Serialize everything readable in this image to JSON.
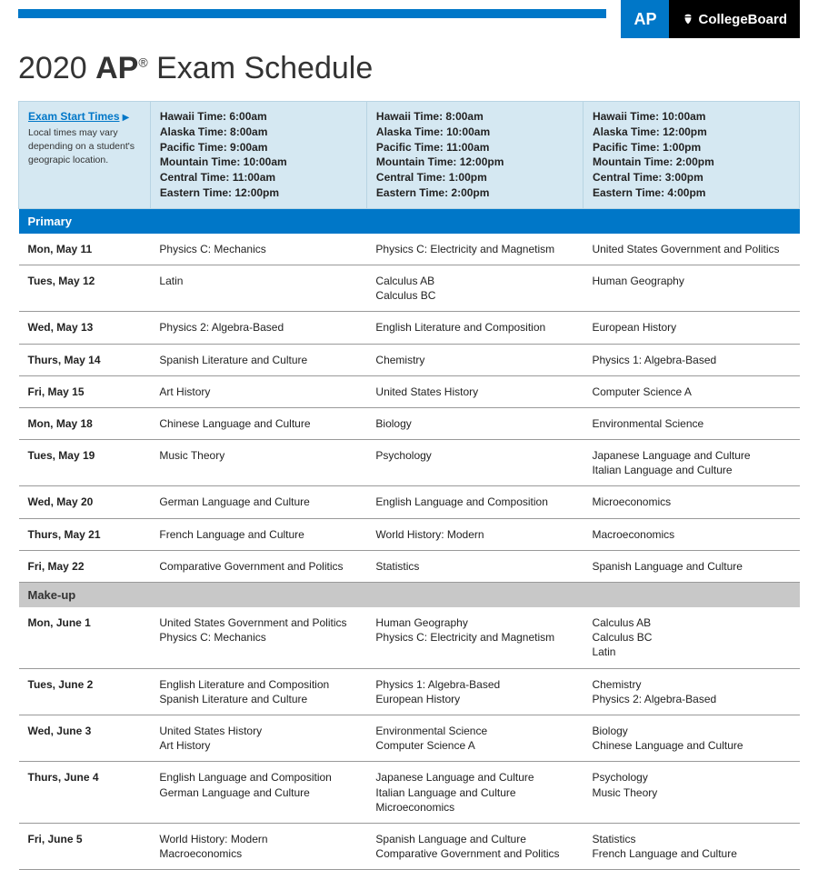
{
  "logo": {
    "ap": "AP",
    "cb": "CollegeBoard"
  },
  "title_pre": "2020 ",
  "title_bold": "AP",
  "title_reg": "®",
  "title_post": " Exam Schedule",
  "colors": {
    "accent": "#0077c8",
    "header_bg": "#d5e8f2",
    "section_gray": "#c8c8c8",
    "row_border": "#999999",
    "text": "#222222"
  },
  "times_header": {
    "label": "Exam Start Times",
    "note": "Local times may vary depending on a student's geograpic location."
  },
  "time_slots": [
    [
      "Hawaii Time: 6:00am",
      "Alaska Time: 8:00am",
      "Pacific Time: 9:00am",
      "Mountain Time: 10:00am",
      "Central Time: 11:00am",
      "Eastern Time: 12:00pm"
    ],
    [
      "Hawaii Time: 8:00am",
      "Alaska Time: 10:00am",
      "Pacific Time: 11:00am",
      "Mountain Time: 12:00pm",
      "Central Time: 1:00pm",
      "Eastern Time: 2:00pm"
    ],
    [
      "Hawaii Time: 10:00am",
      "Alaska Time: 12:00pm",
      "Pacific Time: 1:00pm",
      "Mountain Time: 2:00pm",
      "Central Time: 3:00pm",
      "Eastern Time: 4:00pm"
    ]
  ],
  "sections": [
    {
      "name": "Primary",
      "rows": [
        {
          "date": "Mon, May 11",
          "c1": "Physics C: Mechanics",
          "c2": "Physics C: Electricity and Magnetism",
          "c3": "United States Government and Politics"
        },
        {
          "date": "Tues, May 12",
          "c1": "Latin",
          "c2": "Calculus AB\nCalculus BC",
          "c3": "Human Geography"
        },
        {
          "date": "Wed, May 13",
          "c1": "Physics 2: Algebra-Based",
          "c2": "English Literature and Composition",
          "c3": "European History"
        },
        {
          "date": "Thurs, May 14",
          "c1": "Spanish Literature and Culture",
          "c2": "Chemistry",
          "c3": "Physics 1: Algebra-Based"
        },
        {
          "date": "Fri, May 15",
          "c1": "Art History",
          "c2": "United States History",
          "c3": "Computer Science A"
        },
        {
          "date": "Mon, May 18",
          "c1": "Chinese Language and Culture",
          "c2": "Biology",
          "c3": "Environmental Science"
        },
        {
          "date": "Tues, May 19",
          "c1": "Music Theory",
          "c2": "Psychology",
          "c3": "Japanese Language and Culture\nItalian Language and Culture"
        },
        {
          "date": "Wed, May 20",
          "c1": "German Language and Culture",
          "c2": "English Language and Composition",
          "c3": "Microeconomics"
        },
        {
          "date": "Thurs, May 21",
          "c1": "French Language and Culture",
          "c2": "World History: Modern",
          "c3": "Macroeconomics"
        },
        {
          "date": "Fri, May 22",
          "c1": "Comparative Government and Politics",
          "c2": "Statistics",
          "c3": "Spanish Language and Culture"
        }
      ]
    },
    {
      "name": "Make-up",
      "rows": [
        {
          "date": "Mon, June 1",
          "c1": "United States Government and Politics\nPhysics C: Mechanics",
          "c2": "Human Geography\nPhysics C: Electricity and Magnetism",
          "c3": "Calculus AB\nCalculus BC\nLatin"
        },
        {
          "date": "Tues, June 2",
          "c1": "English Literature and Composition\nSpanish Literature and Culture",
          "c2": "Physics 1: Algebra-Based\nEuropean History",
          "c3": "Chemistry\nPhysics 2: Algebra-Based"
        },
        {
          "date": "Wed, June 3",
          "c1": "United States History\nArt History",
          "c2": "Environmental Science\nComputer Science A",
          "c3": "Biology\nChinese Language and Culture"
        },
        {
          "date": "Thurs, June 4",
          "c1": "English Language and Composition\nGerman Language and Culture",
          "c2": "Japanese Language and Culture\nItalian Language and Culture\nMicroeconomics",
          "c3": "Psychology\nMusic Theory"
        },
        {
          "date": "Fri, June 5",
          "c1": "World History: Modern\nMacroeconomics",
          "c2": "Spanish Language and Culture\nComparative Government and Politics",
          "c3": "Statistics\nFrench Language and Culture"
        }
      ]
    }
  ]
}
